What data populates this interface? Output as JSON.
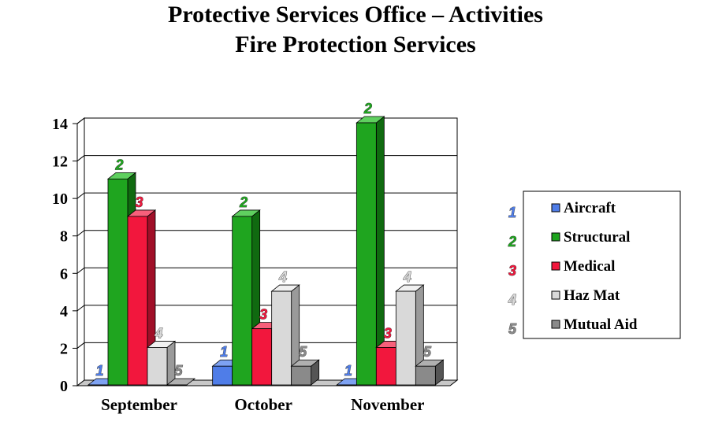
{
  "chart_data": {
    "type": "bar",
    "title": "Protective Services Office – Activities",
    "subtitle": "Fire Protection Services",
    "categories": [
      "September",
      "October",
      "November"
    ],
    "ylim": [
      0,
      14
    ],
    "yticks": [
      "0",
      "2",
      "4",
      "6",
      "8",
      "10",
      "12",
      "14"
    ],
    "grid": true,
    "legend_position": "right",
    "series": [
      {
        "name": "Aircraft",
        "number": "1",
        "color": "#4f7de8",
        "side_color": "#2c52b8",
        "top_color": "#7ea2f2",
        "values": [
          0,
          1,
          0
        ]
      },
      {
        "name": "Structural",
        "number": "2",
        "color": "#1fa51f",
        "side_color": "#106a10",
        "top_color": "#5fd05f",
        "values": [
          11,
          9,
          14
        ]
      },
      {
        "name": "Medical",
        "number": "3",
        "color": "#f2173d",
        "side_color": "#a00f28",
        "top_color": "#f7607b",
        "values": [
          9,
          3,
          2
        ]
      },
      {
        "name": "Haz Mat",
        "number": "4",
        "color": "#d9d9d9",
        "side_color": "#9a9a9a",
        "top_color": "#f0f0f0",
        "values": [
          2,
          5,
          5
        ]
      },
      {
        "name": "Mutual Aid",
        "number": "5",
        "color": "#8a8a8a",
        "side_color": "#555555",
        "top_color": "#b0b0b0",
        "values": [
          0,
          1,
          1
        ]
      }
    ]
  }
}
